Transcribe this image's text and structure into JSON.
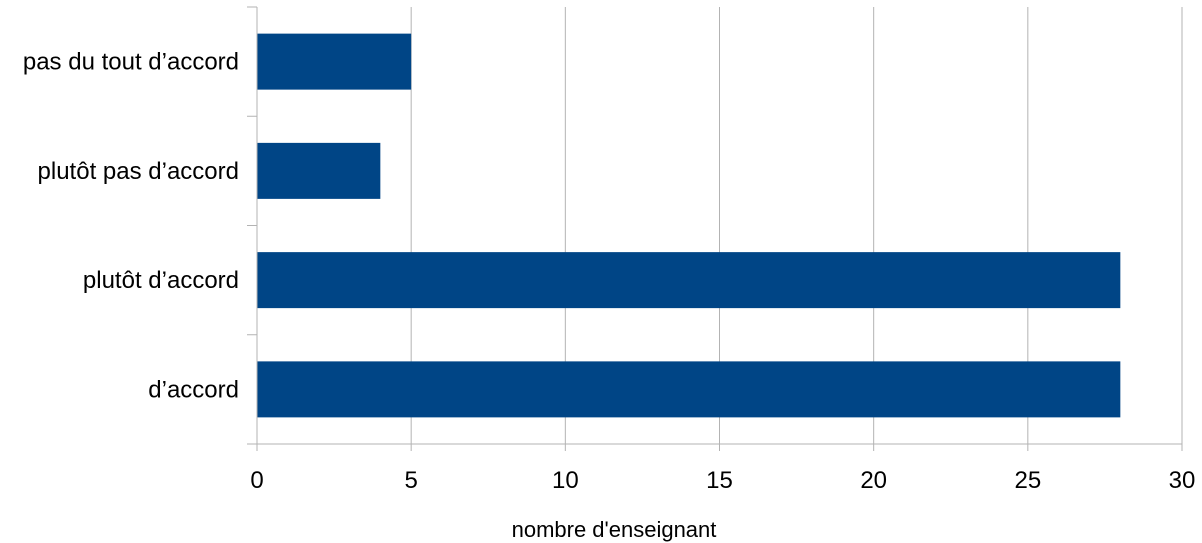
{
  "chart_data": {
    "type": "bar",
    "orientation": "horizontal",
    "categories": [
      "pas du tout d’accord",
      "plutôt pas d’accord",
      "plutôt d’accord",
      "d’accord"
    ],
    "values": [
      5,
      4,
      28,
      28
    ],
    "xlabel": "nombre d'enseignant",
    "ylabel": "",
    "xlim": [
      0,
      30
    ],
    "xticks": [
      0,
      5,
      10,
      15,
      20,
      25,
      30
    ],
    "grid": "vertical",
    "legend": "none",
    "bar_color": "#004586",
    "grid_color": "#b3b3b3"
  }
}
